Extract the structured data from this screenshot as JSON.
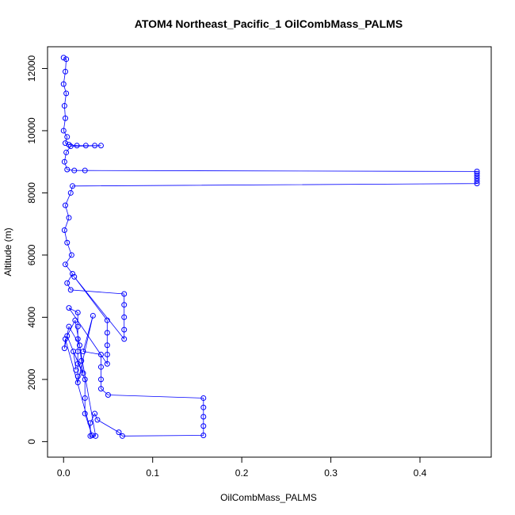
{
  "chart_data": {
    "type": "scatter",
    "title": "ATOM4 Northeast_Pacific_1 OilCombMass_PALMS",
    "xlabel": "OilCombMass_PALMS",
    "ylabel": "Altitude (m)",
    "xlim": [
      -0.018,
      0.48
    ],
    "ylim": [
      -500,
      12700
    ],
    "x_ticks": [
      0,
      0.1,
      0.2,
      0.3,
      0.4
    ],
    "x_tick_labels": [
      "0.0",
      "0.1",
      "0.2",
      "0.3",
      "0.4"
    ],
    "y_ticks": [
      0,
      2000,
      4000,
      6000,
      8000,
      10000,
      12000
    ],
    "y_tick_labels": [
      "0",
      "2000",
      "4000",
      "6000",
      "8000",
      "10000",
      "12000"
    ],
    "series_color": "#0000ff",
    "series": [
      {
        "style": "points-and-lines",
        "points": [
          [
            0.0,
            12350
          ],
          [
            0.003,
            12300
          ],
          [
            0.002,
            11900
          ],
          [
            0.0,
            11500
          ],
          [
            0.003,
            11200
          ],
          [
            0.001,
            10800
          ],
          [
            0.002,
            10400
          ],
          [
            0.0,
            10000
          ],
          [
            0.004,
            9800
          ],
          [
            0.002,
            9600
          ],
          [
            0.006,
            9550
          ],
          [
            0.015,
            9520
          ],
          [
            0.025,
            9520
          ],
          [
            0.035,
            9520
          ],
          [
            0.042,
            9520
          ],
          [
            0.008,
            9500
          ],
          [
            0.003,
            9300
          ],
          [
            0.001,
            9000
          ],
          [
            0.004,
            8750
          ],
          [
            0.012,
            8720
          ],
          [
            0.024,
            8720
          ],
          [
            0.464,
            8690
          ],
          [
            0.464,
            8620
          ],
          [
            0.464,
            8540
          ],
          [
            0.464,
            8460
          ],
          [
            0.464,
            8380
          ],
          [
            0.464,
            8300
          ],
          [
            0.01,
            8220
          ],
          [
            0.008,
            8000
          ],
          [
            0.002,
            7600
          ],
          [
            0.006,
            7200
          ],
          [
            0.001,
            6800
          ],
          [
            0.004,
            6400
          ],
          [
            0.009,
            6000
          ],
          [
            0.002,
            5700
          ],
          [
            0.01,
            5400
          ],
          [
            0.004,
            5100
          ],
          [
            0.008,
            4880
          ],
          [
            0.068,
            4750
          ],
          [
            0.068,
            4400
          ],
          [
            0.068,
            4000
          ],
          [
            0.068,
            3600
          ],
          [
            0.068,
            3300
          ],
          [
            0.012,
            5300
          ],
          [
            0.049,
            3900
          ],
          [
            0.049,
            3500
          ],
          [
            0.049,
            3100
          ],
          [
            0.049,
            2800
          ],
          [
            0.049,
            2500
          ],
          [
            0.006,
            4300
          ],
          [
            0.016,
            4150
          ],
          [
            0.016,
            3700
          ],
          [
            0.016,
            3300
          ],
          [
            0.016,
            2900
          ],
          [
            0.016,
            2500
          ],
          [
            0.016,
            2100
          ],
          [
            0.016,
            1900
          ],
          [
            0.033,
            4050
          ],
          [
            0.022,
            2900
          ],
          [
            0.042,
            2800
          ],
          [
            0.042,
            2400
          ],
          [
            0.042,
            2000
          ],
          [
            0.042,
            1700
          ],
          [
            0.05,
            1500
          ],
          [
            0.157,
            1400
          ],
          [
            0.157,
            1100
          ],
          [
            0.157,
            800
          ],
          [
            0.157,
            500
          ],
          [
            0.157,
            200
          ],
          [
            0.066,
            180
          ],
          [
            0.062,
            300
          ],
          [
            0.038,
            700
          ],
          [
            0.035,
            900
          ],
          [
            0.03,
            600
          ],
          [
            0.03,
            180
          ],
          [
            0.036,
            180
          ],
          [
            0.013,
            3900
          ],
          [
            0.004,
            3400
          ],
          [
            0.024,
            2000
          ],
          [
            0.024,
            1400
          ],
          [
            0.024,
            900
          ],
          [
            0.032,
            200
          ],
          [
            0.002,
            3300
          ],
          [
            0.001,
            3000
          ],
          [
            0.006,
            3700
          ],
          [
            0.018,
            3100
          ],
          [
            0.02,
            2600
          ],
          [
            0.022,
            2200
          ],
          [
            0.011,
            2900
          ],
          [
            0.014,
            2300
          ]
        ]
      }
    ]
  }
}
